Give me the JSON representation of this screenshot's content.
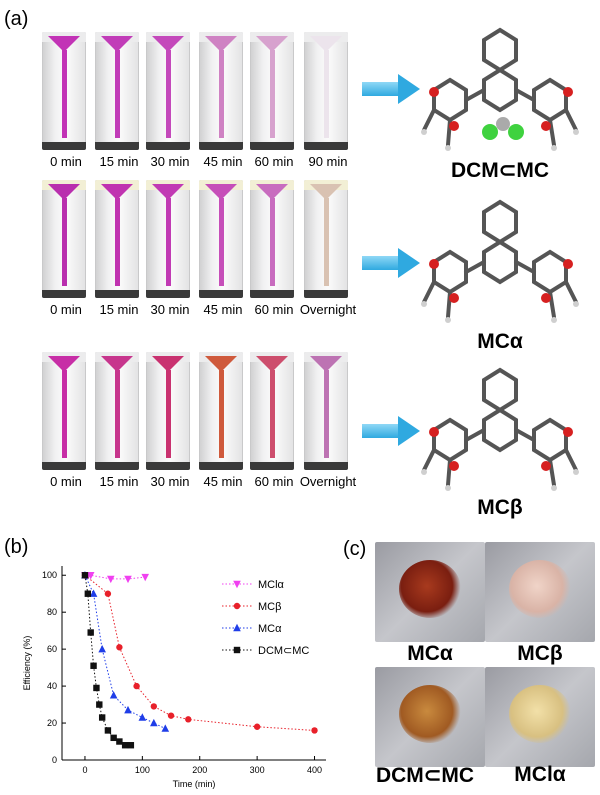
{
  "panels": {
    "a": "(a)",
    "b": "(b)",
    "c": "(c)"
  },
  "rows": [
    {
      "times": [
        "0 min",
        "15 min",
        "30 min",
        "45 min",
        "60 min",
        "90 min"
      ],
      "colors": [
        "#c233b6",
        "#c13cb8",
        "#c449bb",
        "#cf82c3",
        "#d7a2ce",
        "#ece4ec"
      ],
      "cap": "#ececed",
      "molecule": "DCM⊂MC"
    },
    {
      "times": [
        "0 min",
        "15 min",
        "30 min",
        "45 min",
        "60 min",
        "Overnight"
      ],
      "colors": [
        "#b92fae",
        "#c033b0",
        "#c13ab4",
        "#c64fb9",
        "#c86cbf",
        "#d9c2b2"
      ],
      "cap": "#f2efd5",
      "molecule": "MCα"
    },
    {
      "times": [
        "0 min",
        "15 min",
        "30 min",
        "45 min",
        "60 min",
        "Overnight"
      ],
      "colors": [
        "#c72ea6",
        "#c7368d",
        "#c93270",
        "#cf5a3c",
        "#cd4e6d",
        "#bd73b3"
      ],
      "cap": "#ececed",
      "molecule": "MCβ"
    }
  ],
  "chart_data": {
    "type": "scatter",
    "xlabel": "Time (min)",
    "ylabel": "Efficiency (%)",
    "xlim": [
      -40,
      420
    ],
    "ylim": [
      0,
      105
    ],
    "xticks": [
      0,
      100,
      200,
      300,
      400
    ],
    "yticks": [
      0,
      20,
      40,
      60,
      80,
      100
    ],
    "legend_position": "right",
    "series": [
      {
        "name": "MClα",
        "color": "#f040f0",
        "marker": "triangle-down",
        "x": [
          0,
          5,
          10,
          45,
          75,
          105
        ],
        "y": [
          100,
          100,
          100,
          98,
          98,
          99
        ]
      },
      {
        "name": "MCβ",
        "color": "#e8202a",
        "marker": "circle",
        "x": [
          0,
          40,
          60,
          90,
          120,
          150,
          180,
          300,
          400
        ],
        "y": [
          100,
          90,
          61,
          40,
          29,
          24,
          22,
          18,
          16
        ]
      },
      {
        "name": "MCα",
        "color": "#1f3de8",
        "marker": "triangle-up",
        "x": [
          0,
          15,
          30,
          50,
          75,
          100,
          120,
          140
        ],
        "y": [
          100,
          90,
          60,
          35,
          27,
          23,
          20,
          17
        ]
      },
      {
        "name": "DCM⊂MC",
        "color": "#111111",
        "marker": "square",
        "x": [
          0,
          5,
          10,
          15,
          20,
          25,
          30,
          40,
          50,
          60,
          70,
          80
        ],
        "y": [
          100,
          90,
          69,
          51,
          39,
          30,
          23,
          16,
          12,
          10,
          8,
          8
        ]
      }
    ]
  },
  "photos": [
    {
      "label": "MCα",
      "pile": "#7a1e10",
      "pile2": "#a83a1e"
    },
    {
      "label": "MCβ",
      "pile": "#d9b3a6",
      "pile2": "#f0d4c8"
    },
    {
      "label": "DCM⊂MC",
      "pile": "#a05a22",
      "pile2": "#c98a3e"
    },
    {
      "label": "MClα",
      "pile": "#d8c081",
      "pile2": "#f2e0a8"
    }
  ]
}
